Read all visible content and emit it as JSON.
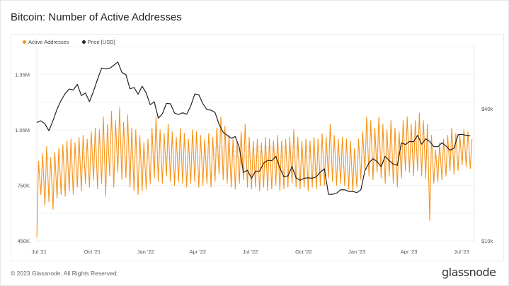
{
  "title": "Bitcoin: Number of Active Addresses",
  "footer": "© 2023 Glassnode. All Rights Reserved.",
  "logo_text": "glassnode",
  "watermark_text": "glassnode",
  "chart_data": {
    "type": "line",
    "title": "Bitcoin: Number of Active Addresses",
    "legend_position": "top-left",
    "grid": true,
    "x_range": [
      "2021-06-27",
      "2023-07-23"
    ],
    "x_ticks": [
      {
        "date": "2021-07-01",
        "label": "Jul '21"
      },
      {
        "date": "2021-10-01",
        "label": "Oct '21"
      },
      {
        "date": "2022-01-01",
        "label": "Jan '22"
      },
      {
        "date": "2022-04-01",
        "label": "Apr '22"
      },
      {
        "date": "2022-07-01",
        "label": "Jul '22"
      },
      {
        "date": "2022-10-01",
        "label": "Oct '22"
      },
      {
        "date": "2023-01-01",
        "label": "Jan '23"
      },
      {
        "date": "2023-04-01",
        "label": "Apr '23"
      },
      {
        "date": "2023-07-01",
        "label": "Jul '23"
      }
    ],
    "y_left": {
      "range": [
        450000,
        1500000
      ],
      "ticks": [
        {
          "value": 450000,
          "label": "450K"
        },
        {
          "value": 750000,
          "label": "750K"
        },
        {
          "value": 1050000,
          "label": "1.05M"
        },
        {
          "value": 1350000,
          "label": "1.35M"
        }
      ],
      "grid_step": 150000
    },
    "y_right": {
      "scale": "log",
      "range": [
        10000,
        77000
      ],
      "ticks": [
        {
          "value": 10000,
          "label": "$10k"
        },
        {
          "value": 40000,
          "label": "$40k"
        }
      ]
    },
    "colors": {
      "active_addresses": "#f7931a",
      "price": "#222222"
    },
    "weeks": [
      "2021-06-27",
      "2021-07-04",
      "2021-07-11",
      "2021-07-18",
      "2021-07-25",
      "2021-08-01",
      "2021-08-08",
      "2021-08-15",
      "2021-08-22",
      "2021-08-29",
      "2021-09-05",
      "2021-09-12",
      "2021-09-19",
      "2021-09-26",
      "2021-10-03",
      "2021-10-10",
      "2021-10-17",
      "2021-10-24",
      "2021-10-31",
      "2021-11-07",
      "2021-11-14",
      "2021-11-21",
      "2021-11-28",
      "2021-12-05",
      "2021-12-12",
      "2021-12-19",
      "2021-12-26",
      "2022-01-02",
      "2022-01-09",
      "2022-01-16",
      "2022-01-23",
      "2022-01-30",
      "2022-02-06",
      "2022-02-13",
      "2022-02-20",
      "2022-02-27",
      "2022-03-06",
      "2022-03-13",
      "2022-03-20",
      "2022-03-27",
      "2022-04-03",
      "2022-04-10",
      "2022-04-17",
      "2022-04-24",
      "2022-05-01",
      "2022-05-08",
      "2022-05-15",
      "2022-05-22",
      "2022-05-29",
      "2022-06-05",
      "2022-06-12",
      "2022-06-19",
      "2022-06-26",
      "2022-07-03",
      "2022-07-10",
      "2022-07-17",
      "2022-07-24",
      "2022-07-31",
      "2022-08-07",
      "2022-08-14",
      "2022-08-21",
      "2022-08-28",
      "2022-09-04",
      "2022-09-11",
      "2022-09-18",
      "2022-09-25",
      "2022-10-02",
      "2022-10-09",
      "2022-10-16",
      "2022-10-23",
      "2022-10-30",
      "2022-11-06",
      "2022-11-13",
      "2022-11-20",
      "2022-11-27",
      "2022-12-04",
      "2022-12-11",
      "2022-12-18",
      "2022-12-25",
      "2023-01-01",
      "2023-01-08",
      "2023-01-15",
      "2023-01-22",
      "2023-01-29",
      "2023-02-05",
      "2023-02-12",
      "2023-02-19",
      "2023-02-26",
      "2023-03-05",
      "2023-03-12",
      "2023-03-19",
      "2023-03-26",
      "2023-04-02",
      "2023-04-09",
      "2023-04-16",
      "2023-04-23",
      "2023-04-30",
      "2023-05-07",
      "2023-05-14",
      "2023-05-21",
      "2023-05-28",
      "2023-06-04",
      "2023-06-11",
      "2023-06-18",
      "2023-06-25",
      "2023-07-02",
      "2023-07-09",
      "2023-07-16"
    ],
    "series": [
      {
        "name": "Active Addresses",
        "axis": "left",
        "weekly_low": [
          470000,
          700000,
          640000,
          660000,
          620000,
          680000,
          700000,
          690000,
          720000,
          700000,
          740000,
          720000,
          760000,
          740000,
          780000,
          730000,
          760000,
          690000,
          800000,
          740000,
          820000,
          780000,
          790000,
          740000,
          720000,
          700000,
          720000,
          730000,
          760000,
          790000,
          770000,
          760000,
          800000,
          770000,
          750000,
          770000,
          760000,
          740000,
          760000,
          770000,
          740000,
          750000,
          760000,
          740000,
          770000,
          810000,
          780000,
          760000,
          740000,
          730000,
          760000,
          780000,
          740000,
          730000,
          740000,
          720000,
          740000,
          720000,
          730000,
          750000,
          720000,
          730000,
          740000,
          760000,
          740000,
          730000,
          740000,
          720000,
          740000,
          730000,
          750000,
          750000,
          790000,
          770000,
          750000,
          760000,
          750000,
          730000,
          720000,
          740000,
          780000,
          830000,
          800000,
          780000,
          820000,
          790000,
          760000,
          800000,
          760000,
          740000,
          790000,
          830000,
          820000,
          800000,
          830000,
          800000,
          790000,
          560000,
          760000,
          770000,
          780000,
          800000,
          830000,
          810000,
          830000,
          860000,
          850000,
          840000
        ],
        "weekly_high": [
          880000,
          920000,
          960000,
          900000,
          930000,
          950000,
          970000,
          990000,
          1000000,
          980000,
          1010000,
          1020000,
          1000000,
          1040000,
          1060000,
          1050000,
          1120000,
          1080000,
          1150000,
          1100000,
          1170000,
          1090000,
          1130000,
          1060000,
          1050000,
          1020000,
          980000,
          1000000,
          1060000,
          1120000,
          1050000,
          1030000,
          1080000,
          1040000,
          1010000,
          1060000,
          1030000,
          1000000,
          1050000,
          1040000,
          1020000,
          1000000,
          1030000,
          1010000,
          1060000,
          1120000,
          1070000,
          1020000,
          1000000,
          990000,
          1040000,
          1080000,
          1010000,
          990000,
          1000000,
          980000,
          1010000,
          1000000,
          990000,
          1020000,
          990000,
          1000000,
          1010000,
          1050000,
          1010000,
          990000,
          1000000,
          990000,
          1010000,
          1000000,
          1030000,
          1010000,
          1080000,
          1020000,
          1000000,
          1010000,
          1000000,
          990000,
          950000,
          1000000,
          1040000,
          1120000,
          1100000,
          1060000,
          1120000,
          1080000,
          1050000,
          1100000,
          1060000,
          1040000,
          1100000,
          1120000,
          1080000,
          1100000,
          1140000,
          1100000,
          1080000,
          1020000,
          940000,
          980000,
          1000000,
          1020000,
          1060000,
          1030000,
          1020000,
          1050000,
          1040000,
          1000000
        ]
      },
      {
        "name": "Price [USD]",
        "axis": "right",
        "values": [
          34700,
          35300,
          34200,
          31800,
          35400,
          39900,
          43800,
          47000,
          49300,
          48800,
          51800,
          46000,
          47300,
          43200,
          48200,
          54700,
          61500,
          60900,
          61300,
          63300,
          65500,
          58700,
          57300,
          49400,
          50100,
          46700,
          50800,
          47300,
          41800,
          43100,
          36300,
          38000,
          42400,
          42200,
          38300,
          37700,
          38400,
          37800,
          41300,
          46800,
          46400,
          42200,
          39700,
          39500,
          38500,
          34000,
          31300,
          30300,
          29400,
          29900,
          26600,
          20500,
          21000,
          19300,
          20800,
          20800,
          22600,
          23300,
          23200,
          24300,
          21500,
          19600,
          19800,
          21800,
          19400,
          18900,
          19300,
          19400,
          19300,
          19600,
          20600,
          21300,
          16300,
          16300,
          16500,
          17100,
          17100,
          16800,
          16800,
          16600,
          17100,
          20900,
          22700,
          23700,
          23000,
          21800,
          24300,
          23200,
          22400,
          22100,
          28000,
          27500,
          28400,
          28300,
          30300,
          27600,
          29200,
          28400,
          26900,
          26900,
          28000,
          27100,
          25900,
          26500,
          30500,
          30600,
          30300,
          30200
        ]
      }
    ]
  }
}
